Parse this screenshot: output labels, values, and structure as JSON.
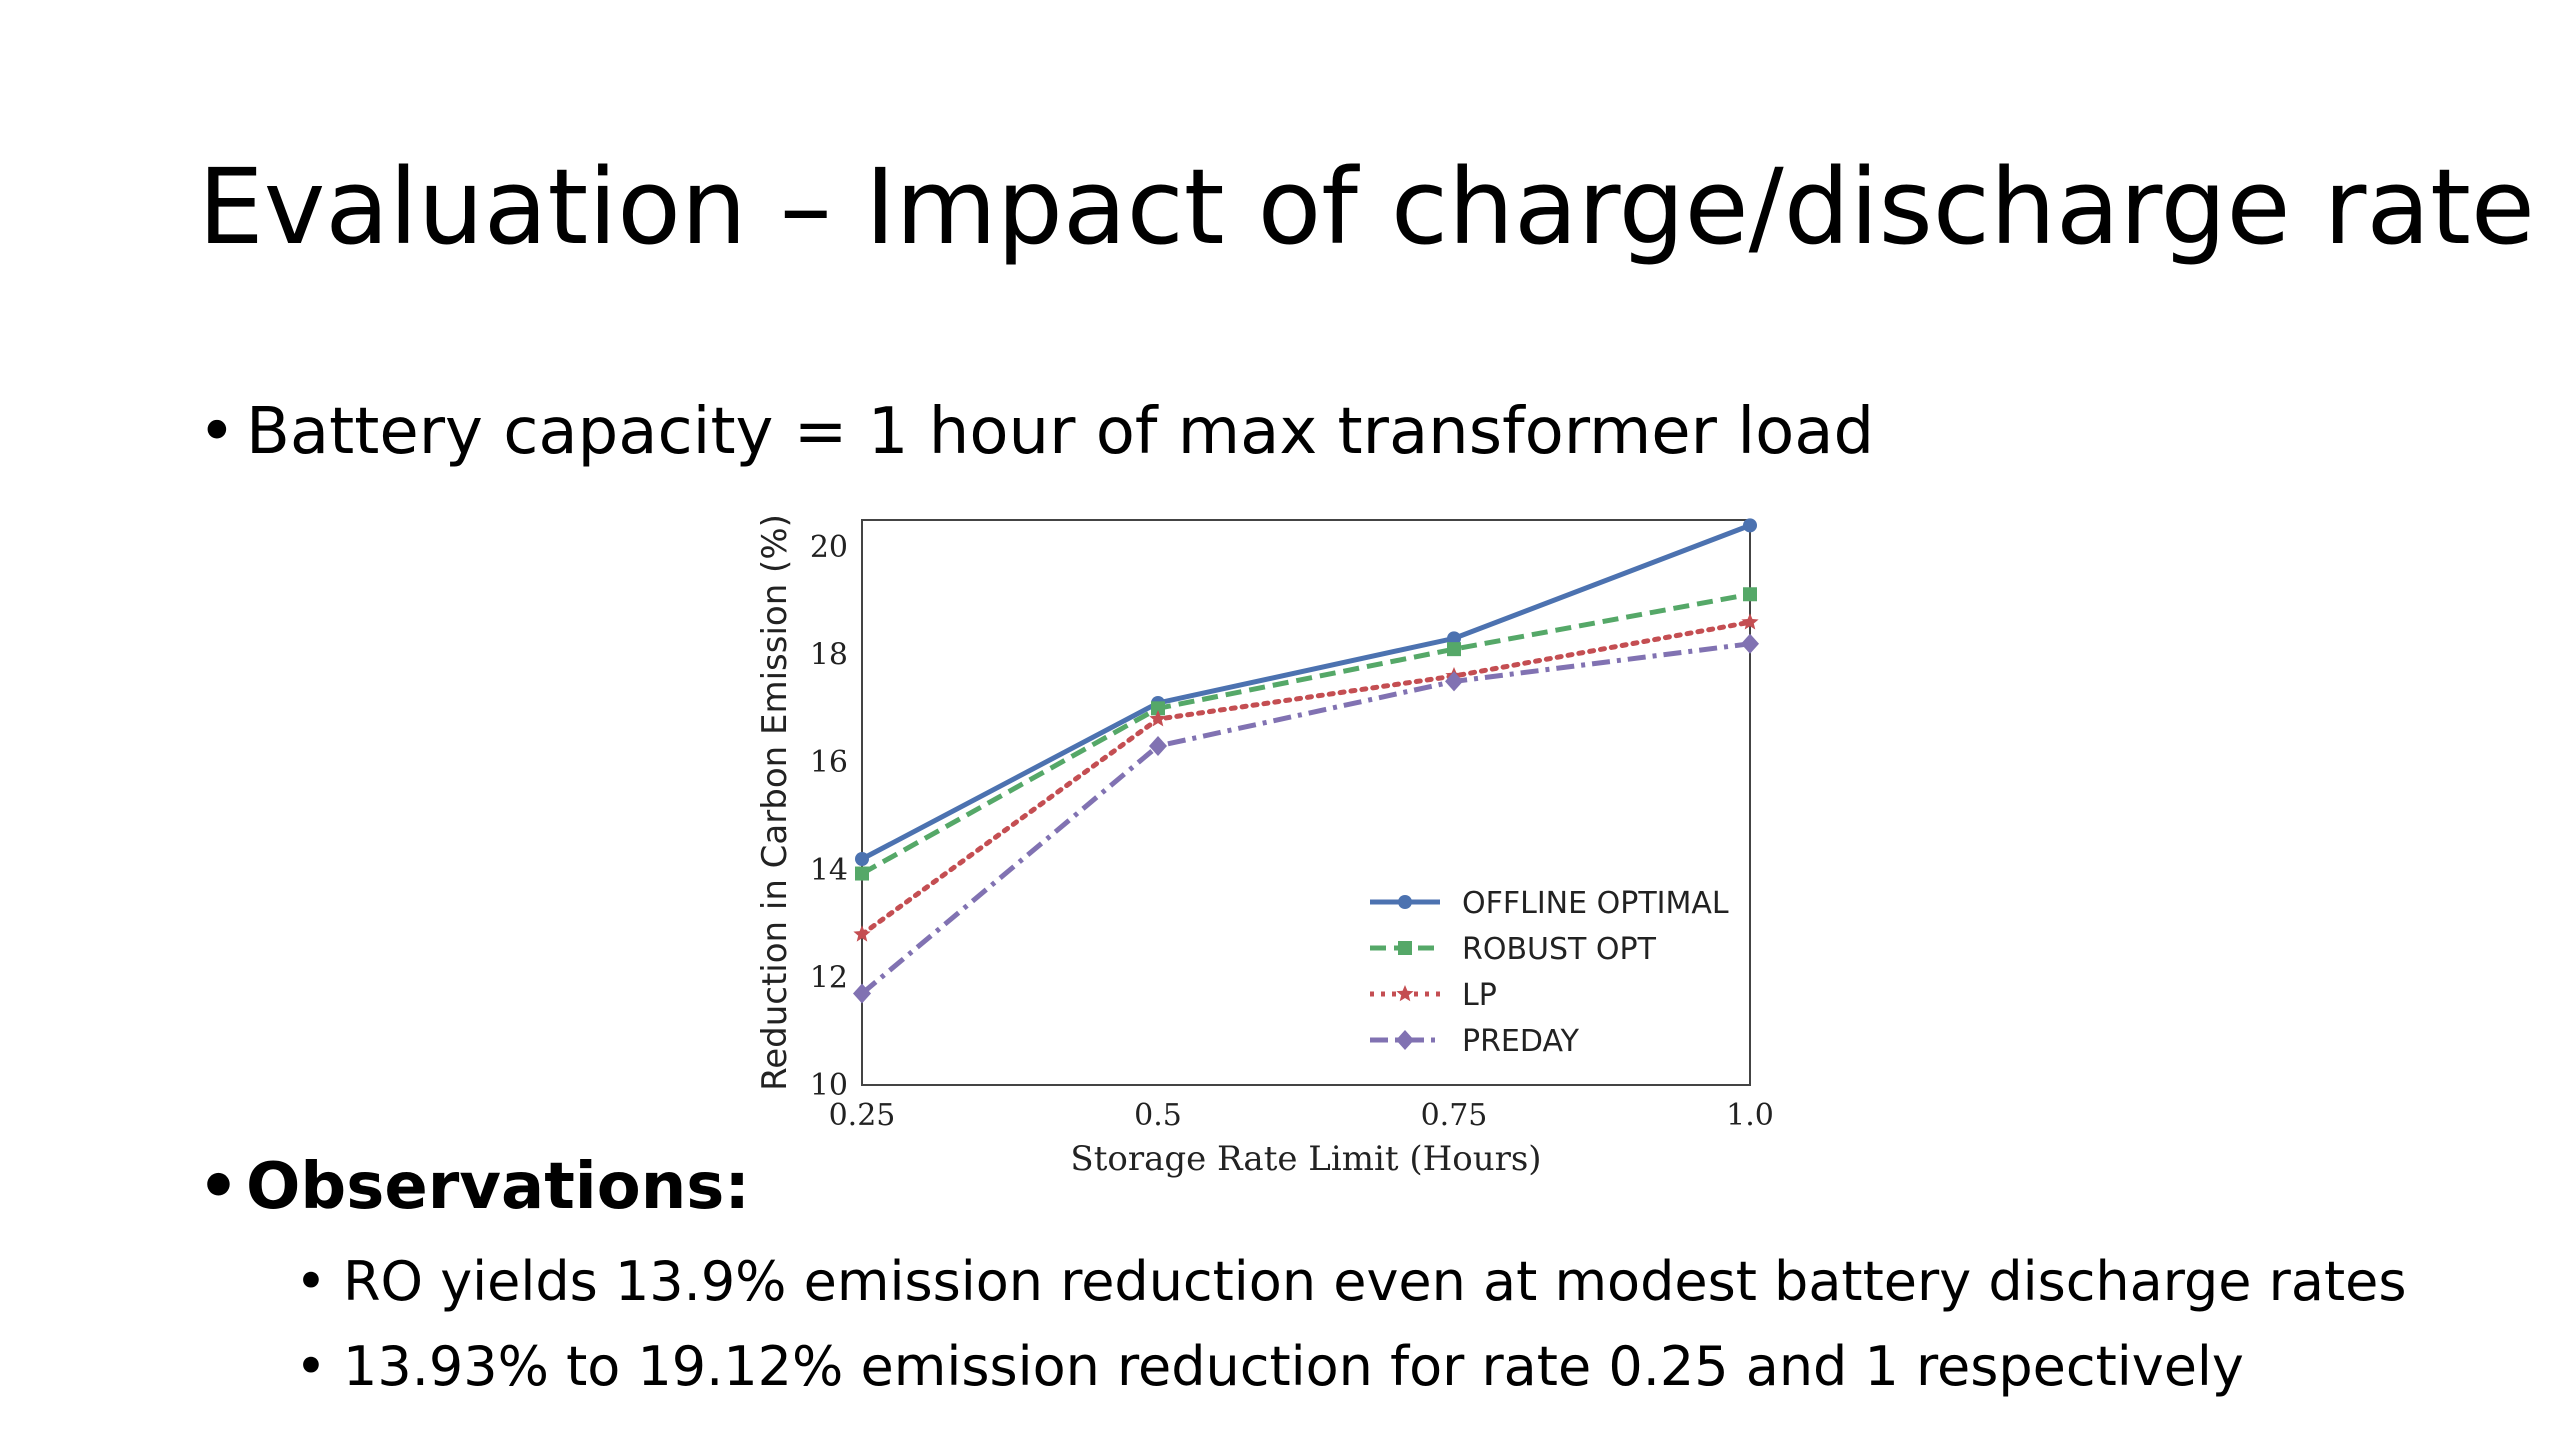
{
  "slide": {
    "title": "Evaluation – Impact of charge/discharge rate",
    "bullets": [
      "Battery capacity = 1 hour of max transformer load",
      "Observations:"
    ],
    "sub_bullets": [
      "RO yields 13.9% emission reduction even at modest battery discharge rates",
      "13.93% to 19.12% emission reduction for rate 0.25 and 1 respectively"
    ],
    "bullet_glyph": "•"
  },
  "chart_data": {
    "type": "line",
    "title": "",
    "xlabel": "Storage Rate Limit (Hours)",
    "ylabel": "Reduction in Carbon Emission (%)",
    "x": [
      0.25,
      0.5,
      0.75,
      1.0
    ],
    "x_tick_labels": [
      "0.25",
      "0.5",
      "0.75",
      "1.0"
    ],
    "y_ticks": [
      10,
      12,
      14,
      16,
      18,
      20
    ],
    "y_tick_labels": [
      "10",
      "12",
      "14",
      "16",
      "18",
      "20"
    ],
    "xlim": [
      0.25,
      1.0
    ],
    "ylim": [
      10,
      20.5
    ],
    "grid": false,
    "legend_position": "lower-right",
    "series": [
      {
        "name": "OFFLINE OPTIMAL",
        "values": [
          14.2,
          17.1,
          18.3,
          20.4
        ],
        "color": "#4c72b0",
        "linestyle": "solid",
        "marker": "circle"
      },
      {
        "name": "ROBUST OPT",
        "values": [
          13.93,
          17.0,
          18.1,
          19.12
        ],
        "color": "#55a868",
        "linestyle": "dashed",
        "marker": "square"
      },
      {
        "name": "LP",
        "values": [
          12.8,
          16.8,
          17.6,
          18.6
        ],
        "color": "#c44e52",
        "linestyle": "dotted",
        "marker": "star"
      },
      {
        "name": "PREDAY",
        "values": [
          11.7,
          16.3,
          17.5,
          18.2
        ],
        "color": "#8172b2",
        "linestyle": "dashdot",
        "marker": "diamond"
      }
    ]
  }
}
